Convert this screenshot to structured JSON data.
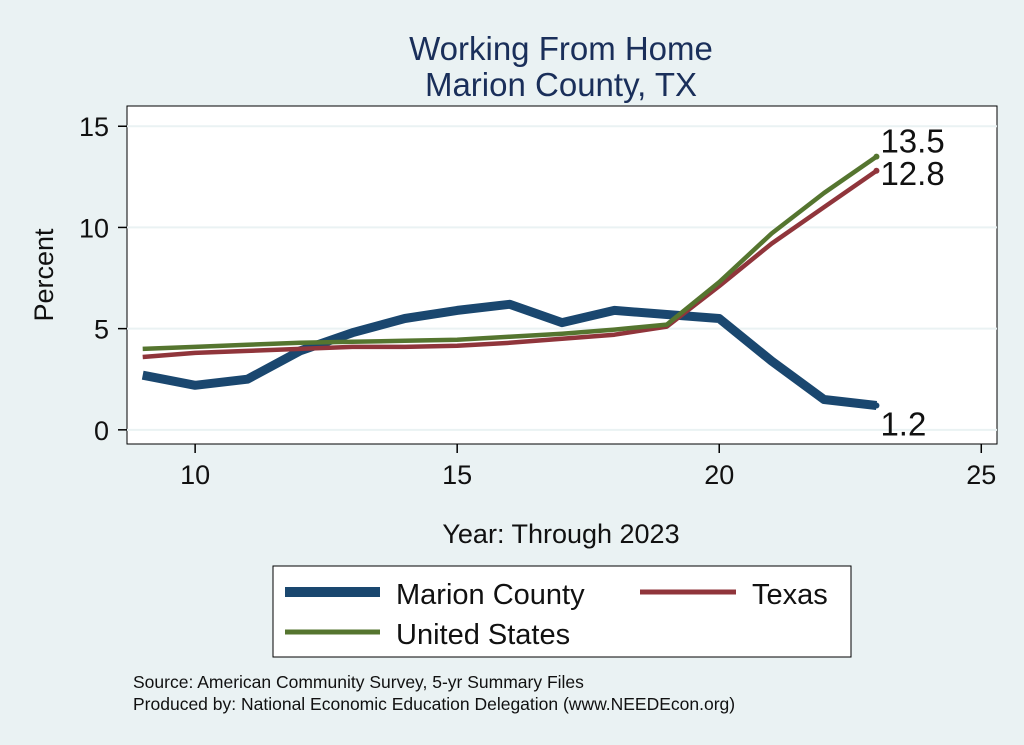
{
  "chart_data": {
    "type": "line",
    "title": [
      "Working From Home",
      "Marion County, TX"
    ],
    "xlabel": "Year: Through 2023",
    "ylabel": "Percent",
    "xlim": [
      8.7,
      25.3
    ],
    "ylim": [
      -0.7,
      16.0
    ],
    "xticks": [
      10,
      15,
      20,
      25
    ],
    "yticks": [
      0,
      5,
      10,
      15
    ],
    "grid": true,
    "legend_position": "bottom",
    "series": [
      {
        "name": "Marion County",
        "color": "#1a476f",
        "x": [
          9,
          10,
          11,
          12,
          13,
          14,
          15,
          16,
          17,
          18,
          19,
          20,
          21,
          22,
          23
        ],
        "y": [
          2.7,
          2.2,
          2.5,
          3.9,
          4.8,
          5.5,
          5.9,
          6.2,
          5.3,
          5.9,
          5.7,
          5.5,
          3.4,
          1.5,
          1.2
        ],
        "end_label": "1.2"
      },
      {
        "name": "Texas",
        "color": "#90353b",
        "x": [
          9,
          10,
          11,
          12,
          13,
          14,
          15,
          16,
          17,
          18,
          19,
          20,
          21,
          22,
          23
        ],
        "y": [
          3.6,
          3.8,
          3.9,
          4.0,
          4.1,
          4.1,
          4.15,
          4.3,
          4.5,
          4.7,
          5.1,
          7.1,
          9.2,
          11.0,
          12.8
        ],
        "end_label": "12.8"
      },
      {
        "name": "United States",
        "color": "#55752f",
        "x": [
          9,
          10,
          11,
          12,
          13,
          14,
          15,
          16,
          17,
          18,
          19,
          20,
          21,
          22,
          23
        ],
        "y": [
          4.0,
          4.1,
          4.2,
          4.3,
          4.35,
          4.4,
          4.45,
          4.6,
          4.75,
          4.95,
          5.2,
          7.3,
          9.7,
          11.7,
          13.5
        ],
        "end_label": "13.5"
      }
    ]
  },
  "legend": {
    "items": [
      {
        "label": "Marion County",
        "color": "#1a476f"
      },
      {
        "label": "Texas",
        "color": "#90353b"
      },
      {
        "label": "United States",
        "color": "#55752f"
      }
    ]
  },
  "notes": {
    "source": "Source: American Community Survey, 5-yr Summary Files",
    "produced": "Produced by: National Economic Education Delegation (www.NEEDEcon.org)"
  }
}
